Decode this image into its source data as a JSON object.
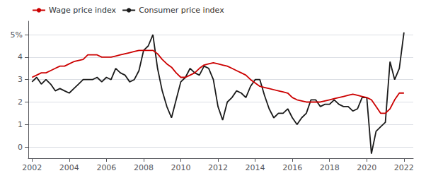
{
  "chart_data": {
    "type": "line",
    "legend": "top-left",
    "grid": true,
    "xlim": [
      2001.8,
      2022.5
    ],
    "xticks": [
      2002,
      2004,
      2006,
      2008,
      2010,
      2012,
      2014,
      2016,
      2018,
      2020,
      2022
    ],
    "ylim": [
      -0.5,
      5.6
    ],
    "yticks": [
      0,
      1,
      2,
      3,
      4,
      {
        "value": 5,
        "label": "5%"
      }
    ],
    "x": [
      2002.0,
      2002.25,
      2002.5,
      2002.75,
      2003.0,
      2003.25,
      2003.5,
      2003.75,
      2004.0,
      2004.25,
      2004.5,
      2004.75,
      2005.0,
      2005.25,
      2005.5,
      2005.75,
      2006.0,
      2006.25,
      2006.5,
      2006.75,
      2007.0,
      2007.25,
      2007.5,
      2007.75,
      2008.0,
      2008.25,
      2008.5,
      2008.75,
      2009.0,
      2009.25,
      2009.5,
      2009.75,
      2010.0,
      2010.25,
      2010.5,
      2010.75,
      2011.0,
      2011.25,
      2011.5,
      2011.75,
      2012.0,
      2012.25,
      2012.5,
      2012.75,
      2013.0,
      2013.25,
      2013.5,
      2013.75,
      2014.0,
      2014.25,
      2014.5,
      2014.75,
      2015.0,
      2015.25,
      2015.5,
      2015.75,
      2016.0,
      2016.25,
      2016.5,
      2016.75,
      2017.0,
      2017.25,
      2017.5,
      2017.75,
      2018.0,
      2018.25,
      2018.5,
      2018.75,
      2019.0,
      2019.25,
      2019.5,
      2019.75,
      2020.0,
      2020.25,
      2020.5,
      2020.75,
      2021.0,
      2021.25,
      2021.5,
      2021.75,
      2022.0
    ],
    "series": [
      {
        "name": "Wage price index",
        "color": "#cc0000",
        "values": [
          3.1,
          3.2,
          3.3,
          3.3,
          3.4,
          3.5,
          3.6,
          3.6,
          3.7,
          3.8,
          3.85,
          3.9,
          4.1,
          4.1,
          4.1,
          4.0,
          4.0,
          4.0,
          4.05,
          4.1,
          4.15,
          4.2,
          4.25,
          4.3,
          4.3,
          4.3,
          4.3,
          4.15,
          3.9,
          3.7,
          3.55,
          3.3,
          3.1,
          3.1,
          3.2,
          3.3,
          3.5,
          3.65,
          3.7,
          3.75,
          3.7,
          3.65,
          3.6,
          3.5,
          3.4,
          3.3,
          3.2,
          3.0,
          2.85,
          2.7,
          2.65,
          2.6,
          2.55,
          2.5,
          2.45,
          2.4,
          2.2,
          2.1,
          2.05,
          2.0,
          2.0,
          2.0,
          2.0,
          2.05,
          2.1,
          2.15,
          2.2,
          2.25,
          2.3,
          2.35,
          2.3,
          2.25,
          2.2,
          2.1,
          1.8,
          1.5,
          1.5,
          1.7,
          2.1,
          2.4,
          2.4
        ]
      },
      {
        "name": "Consumer price index",
        "color": "#1a1a1a",
        "values": [
          2.9,
          3.1,
          2.8,
          3.0,
          2.8,
          2.5,
          2.6,
          2.5,
          2.4,
          2.6,
          2.8,
          3.0,
          3.0,
          3.0,
          3.1,
          2.9,
          3.1,
          3.0,
          3.5,
          3.3,
          3.2,
          2.9,
          3.0,
          3.4,
          4.3,
          4.5,
          5.0,
          3.5,
          2.5,
          1.8,
          1.3,
          2.1,
          2.9,
          3.1,
          3.5,
          3.3,
          3.2,
          3.6,
          3.5,
          3.0,
          1.8,
          1.2,
          2.0,
          2.2,
          2.5,
          2.4,
          2.2,
          2.7,
          3.0,
          3.0,
          2.3,
          1.7,
          1.3,
          1.5,
          1.5,
          1.7,
          1.3,
          1.0,
          1.3,
          1.5,
          2.1,
          2.1,
          1.8,
          1.9,
          1.9,
          2.1,
          1.9,
          1.8,
          1.8,
          1.6,
          1.7,
          2.2,
          2.2,
          -0.3,
          0.7,
          0.9,
          1.1,
          3.8,
          3.0,
          3.5,
          5.1
        ]
      }
    ]
  }
}
